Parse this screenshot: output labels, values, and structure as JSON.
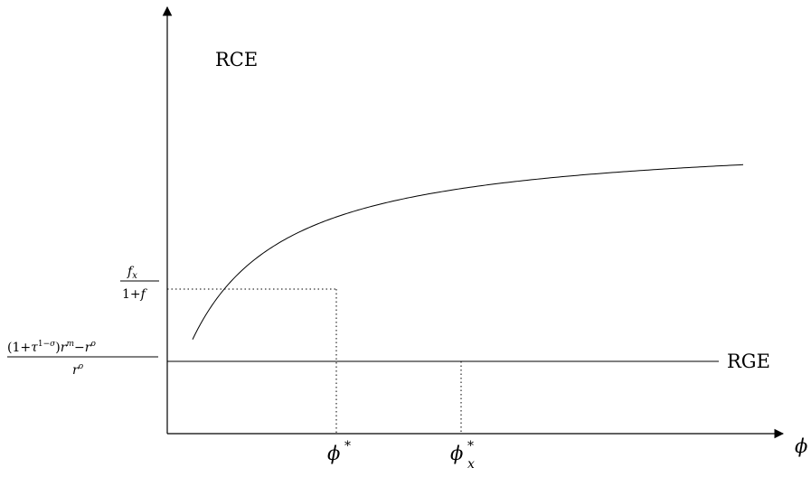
{
  "diagram": {
    "curve_label": "RCE",
    "line_label": "RGE",
    "x_axis_label": "ϕ",
    "ticks": {
      "x1": {
        "base": "ϕ",
        "sup": "*",
        "sub": ""
      },
      "x2": {
        "base": "ϕ",
        "sup": "*",
        "sub": "x"
      }
    },
    "y_labels": {
      "upper": {
        "numerator": "fx",
        "denominator": "1+f"
      },
      "lower": {
        "numerator": "(1+τ1−σ)rm−ro",
        "denominator": "ro"
      }
    }
  }
}
